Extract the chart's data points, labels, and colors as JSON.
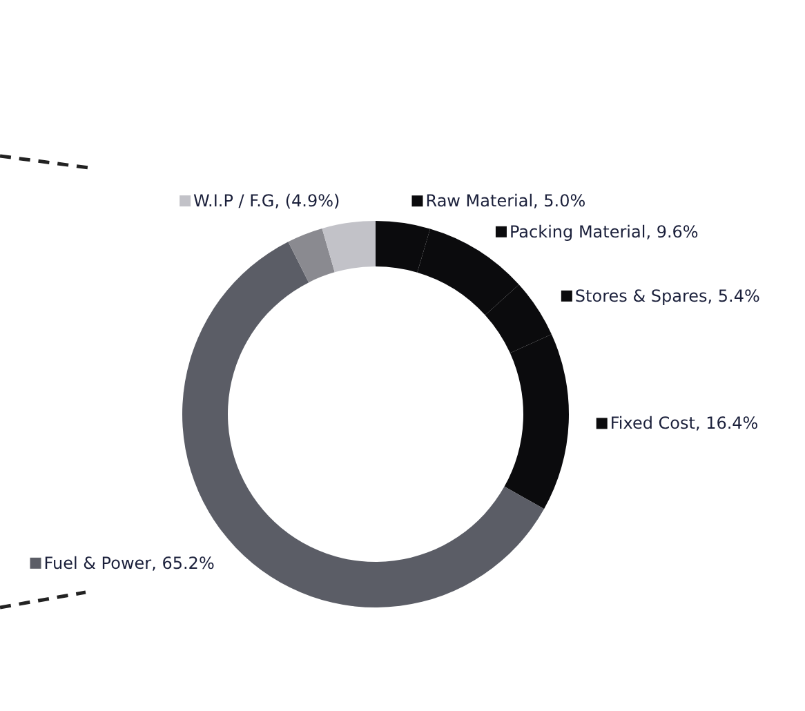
{
  "chart_data": {
    "type": "donut",
    "categories": [
      "Raw Material",
      "Packing Material",
      "Stores & Spares",
      "Fixed Cost",
      "Fuel & Power",
      null,
      "W.I.P / F.G"
    ],
    "values": [
      5.0,
      9.6,
      5.4,
      16.4,
      65.2,
      3.3,
      4.9
    ],
    "value_labels": [
      "5.0%",
      "9.6%",
      "5.4%",
      "16.4%",
      "65.2%",
      null,
      "(4.9%)"
    ],
    "legend": "right",
    "colors": [
      "#0b0b0d",
      "#0b0b0d",
      "#0b0b0d",
      "#0b0b0d",
      "#5b5d66",
      "#8a8a90",
      "#c2c2c8"
    ]
  }
}
